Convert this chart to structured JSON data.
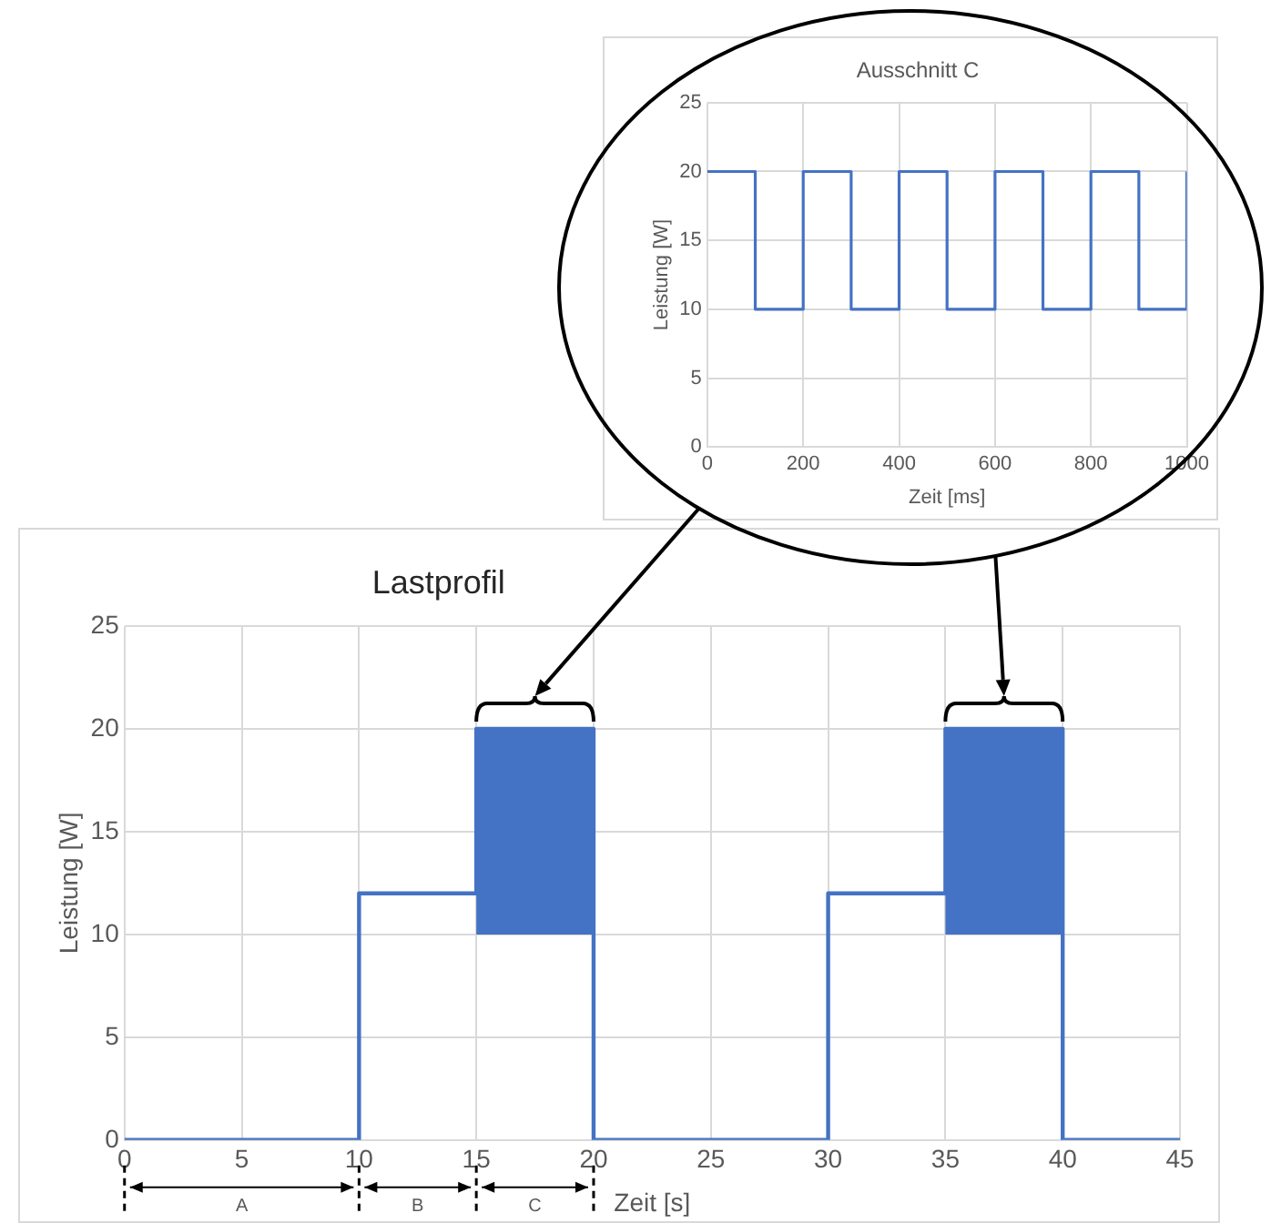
{
  "chart_data": [
    {
      "type": "line",
      "title": "Ausschnitt C",
      "xlabel": "Zeit [ms]",
      "ylabel": "Leistung [W]",
      "series": [
        {
          "color": "#4472c4",
          "x": [
            0,
            100,
            100,
            200,
            200,
            300,
            300,
            400,
            400,
            500,
            500,
            600,
            600,
            700,
            700,
            800,
            800,
            900,
            900,
            1000,
            1000
          ],
          "values": [
            20,
            20,
            10,
            10,
            20,
            20,
            10,
            10,
            20,
            20,
            10,
            10,
            20,
            20,
            10,
            10,
            20,
            20,
            10,
            10,
            20
          ]
        }
      ],
      "xlim": [
        0,
        1000
      ],
      "xticks": [
        0,
        200,
        400,
        600,
        800,
        1000
      ],
      "ylim": [
        0,
        25
      ],
      "yticks": [
        0,
        5,
        10,
        15,
        20,
        25
      ],
      "grid": true
    },
    {
      "type": "line",
      "title": "Lastprofil",
      "xlabel": "Zeit [s]",
      "ylabel": "Leistung [W]",
      "series": [
        {
          "color": "#4472c4",
          "x": [
            0,
            10,
            10,
            15,
            15,
            20,
            20,
            30,
            30,
            35,
            35,
            40,
            40,
            45
          ],
          "values": [
            0,
            0,
            12,
            12,
            20,
            20,
            0,
            0,
            12,
            12,
            20,
            20,
            0,
            0
          ],
          "lower": [
            null,
            null,
            null,
            null,
            10,
            10,
            null,
            null,
            null,
            null,
            10,
            10,
            null,
            null
          ],
          "upper": [
            null,
            null,
            null,
            null,
            20,
            20,
            null,
            null,
            null,
            null,
            20,
            20,
            null,
            null
          ]
        }
      ],
      "xlim": [
        0,
        45
      ],
      "xticks": [
        0,
        5,
        10,
        15,
        20,
        25,
        30,
        35,
        40,
        45
      ],
      "ylim": [
        0,
        25
      ],
      "yticks": [
        0,
        5,
        10,
        15,
        20,
        25
      ],
      "grid": true,
      "annotations": [
        "A",
        "B",
        "C"
      ]
    }
  ]
}
